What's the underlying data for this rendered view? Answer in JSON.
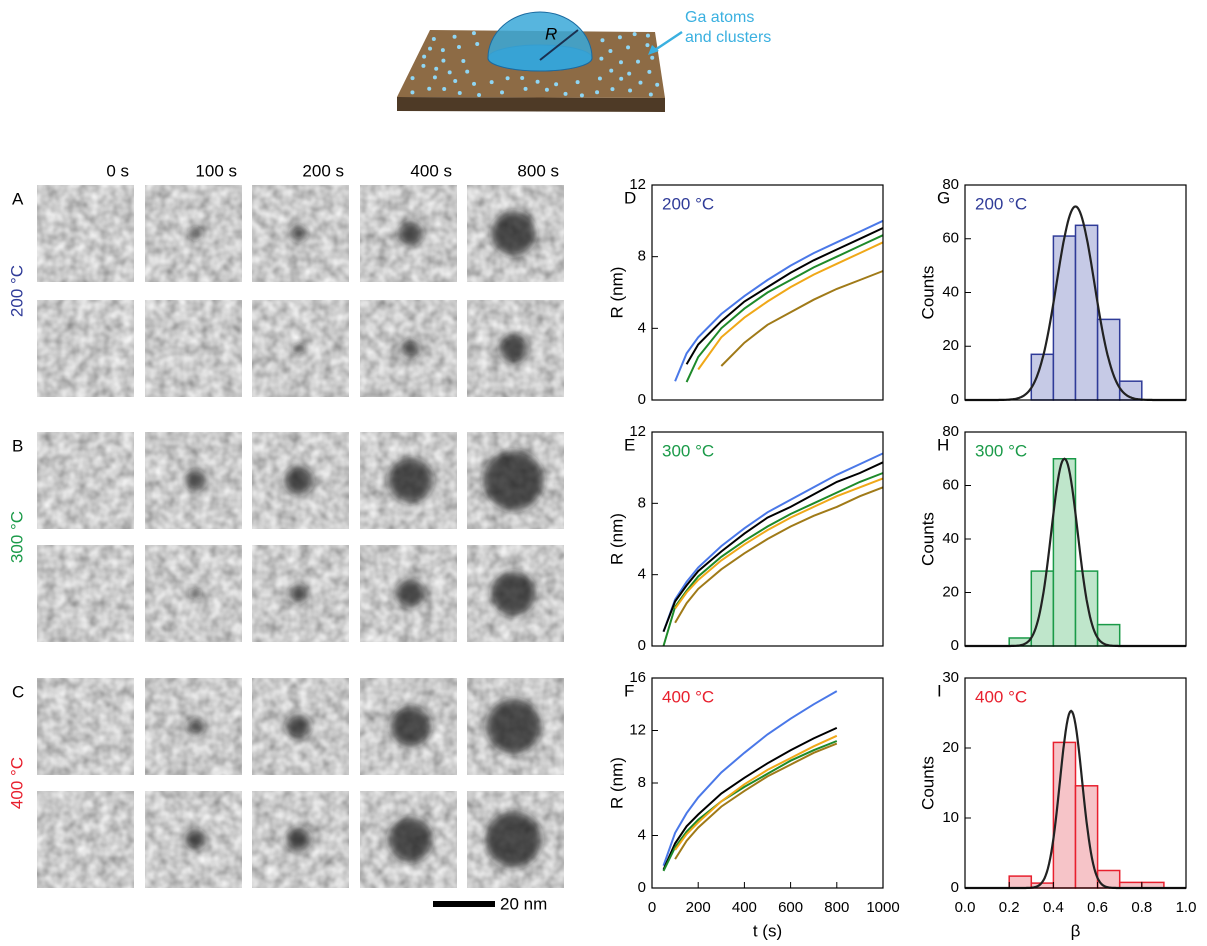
{
  "schematic": {
    "radius_label": "R",
    "atoms_label": [
      "Ga atoms",
      "and clusters"
    ]
  },
  "micrographs": {
    "times": [
      "0 s",
      "100 s",
      "200 s",
      "400 s",
      "800 s"
    ],
    "panels": [
      {
        "letter": "A",
        "temperature": "200 °C",
        "color": "#2f3b98"
      },
      {
        "letter": "B",
        "temperature": "300 °C",
        "color": "#1a9a48"
      },
      {
        "letter": "C",
        "temperature": "400 °C",
        "color": "#e8202e"
      }
    ],
    "scale_bar": "20 nm"
  },
  "chart_data": [
    {
      "type": "line",
      "panel": "D",
      "annotation": "200 °C",
      "annotation_color": "#2f3b98",
      "ylabel": "R (nm)",
      "x": [
        50,
        100,
        150,
        200,
        300,
        400,
        500,
        600,
        700,
        800,
        900,
        1000
      ],
      "series": [
        {
          "color": "#4a78e8",
          "values": [
            null,
            1.05,
            2.6,
            3.5,
            4.8,
            5.8,
            6.7,
            7.5,
            8.2,
            8.8,
            9.4,
            10
          ]
        },
        {
          "color": "#000000",
          "values": [
            null,
            null,
            2.0,
            3.1,
            4.4,
            5.5,
            6.3,
            7.1,
            7.8,
            8.4,
            9.0,
            9.6
          ]
        },
        {
          "color": "#1e8a2a",
          "values": [
            null,
            null,
            1.0,
            2.4,
            4.0,
            5.1,
            6.0,
            6.7,
            7.4,
            8.0,
            8.6,
            9.2
          ]
        },
        {
          "color": "#f0a818",
          "values": [
            null,
            null,
            null,
            1.7,
            3.5,
            4.6,
            5.5,
            6.3,
            7.0,
            7.6,
            8.2,
            8.8
          ]
        },
        {
          "color": "#a07a18",
          "values": [
            null,
            null,
            null,
            null,
            1.9,
            3.2,
            4.2,
            4.9,
            5.6,
            6.2,
            6.7,
            7.2
          ]
        }
      ],
      "xlim": [
        0,
        1000
      ],
      "ylim": [
        0,
        12
      ],
      "yticks": [
        0,
        4,
        8,
        12
      ]
    },
    {
      "type": "line",
      "panel": "E",
      "annotation": "300 °C",
      "annotation_color": "#1a9a48",
      "ylabel": "R (nm)",
      "x": [
        50,
        100,
        150,
        200,
        300,
        400,
        500,
        600,
        700,
        800,
        900,
        1000
      ],
      "series": [
        {
          "color": "#4a78e8",
          "values": [
            0.8,
            2.6,
            3.6,
            4.4,
            5.6,
            6.6,
            7.5,
            8.2,
            8.9,
            9.6,
            10.2,
            10.8
          ]
        },
        {
          "color": "#000000",
          "values": [
            0.8,
            2.5,
            3.4,
            4.2,
            5.3,
            6.3,
            7.2,
            7.8,
            8.5,
            9.2,
            9.7,
            10.3
          ]
        },
        {
          "color": "#1e8a2a",
          "values": [
            0,
            2.2,
            3.1,
            3.9,
            5.0,
            5.9,
            6.7,
            7.4,
            8.0,
            8.6,
            9.2,
            9.7
          ]
        },
        {
          "color": "#f0a818",
          "values": [
            null,
            2.1,
            3.0,
            3.7,
            4.8,
            5.7,
            6.5,
            7.2,
            7.8,
            8.4,
            8.9,
            9.4
          ]
        },
        {
          "color": "#a07a18",
          "values": [
            null,
            1.3,
            2.4,
            3.2,
            4.3,
            5.2,
            6.0,
            6.7,
            7.3,
            7.8,
            8.4,
            8.9
          ]
        }
      ],
      "xlim": [
        0,
        1000
      ],
      "ylim": [
        0,
        12
      ],
      "yticks": [
        0,
        4,
        8,
        12
      ]
    },
    {
      "type": "line",
      "panel": "F",
      "annotation": "400 °C",
      "annotation_color": "#e8202e",
      "ylabel": "R (nm)",
      "xlabel": "t (s)",
      "x": [
        50,
        100,
        150,
        200,
        300,
        400,
        500,
        600,
        700,
        800,
        900,
        1000
      ],
      "series": [
        {
          "color": "#4a78e8",
          "values": [
            1.7,
            4.2,
            5.7,
            6.9,
            8.8,
            10.3,
            11.7,
            12.9,
            14.0,
            15.0,
            null,
            null
          ]
        },
        {
          "color": "#000000",
          "values": [
            1.4,
            3.4,
            4.7,
            5.6,
            7.2,
            8.4,
            9.5,
            10.5,
            11.4,
            12.2,
            null,
            null
          ]
        },
        {
          "color": "#1e8a2a",
          "values": [
            1.3,
            3.1,
            4.3,
            5.2,
            6.6,
            7.7,
            8.7,
            9.7,
            10.5,
            11.2,
            null,
            null
          ]
        },
        {
          "color": "#f0a818",
          "values": [
            null,
            2.9,
            4.1,
            5.0,
            6.6,
            7.9,
            9.0,
            9.9,
            10.8,
            11.6,
            null,
            null
          ]
        },
        {
          "color": "#a07a18",
          "values": [
            null,
            2.2,
            3.6,
            4.6,
            6.2,
            7.4,
            8.5,
            9.4,
            10.3,
            11.0,
            null,
            null
          ]
        }
      ],
      "xlim": [
        0,
        1000
      ],
      "ylim": [
        0,
        16
      ],
      "yticks": [
        0,
        4,
        8,
        12,
        16
      ],
      "xticks": [
        0,
        200,
        400,
        600,
        800,
        1000
      ]
    },
    {
      "type": "histogram",
      "panel": "G",
      "annotation": "200 °C",
      "annotation_color": "#2f3b98",
      "ylabel": "Counts",
      "bins": [
        0.3,
        0.4,
        0.5,
        0.6,
        0.7,
        0.8
      ],
      "values": [
        17,
        61,
        65,
        30,
        7
      ],
      "color": "#2f3b98",
      "fill": "#c6cae6",
      "fit": {
        "center": 0.5,
        "width": 0.085,
        "peak": 72
      },
      "xlim": [
        0,
        1
      ],
      "ylim": [
        0,
        80
      ],
      "yticks": [
        0,
        20,
        40,
        60,
        80
      ]
    },
    {
      "type": "histogram",
      "panel": "H",
      "annotation": "300 °C",
      "annotation_color": "#1a9a48",
      "ylabel": "Counts",
      "bins": [
        0.2,
        0.3,
        0.4,
        0.5,
        0.6,
        0.7
      ],
      "values": [
        3,
        28,
        70,
        28,
        8
      ],
      "color": "#1a9a48",
      "fill": "#bfe6cb",
      "fit": {
        "center": 0.45,
        "width": 0.06,
        "peak": 70
      },
      "xlim": [
        0,
        1
      ],
      "ylim": [
        0,
        80
      ],
      "yticks": [
        0,
        20,
        40,
        60,
        80
      ]
    },
    {
      "type": "histogram",
      "panel": "I",
      "annotation": "400 °C",
      "annotation_color": "#e8202e",
      "ylabel": "Counts",
      "xlabel": "β",
      "bins": [
        0.2,
        0.3,
        0.4,
        0.5,
        0.6,
        0.7,
        0.8,
        0.9
      ],
      "values": [
        1.7,
        0.7,
        20.8,
        14.6,
        2.5,
        0.8,
        0.8
      ],
      "color": "#e8202e",
      "fill": "#f6c4c8",
      "fit": {
        "center": 0.48,
        "width": 0.05,
        "peak": 25.3
      },
      "xlim": [
        0,
        1
      ],
      "ylim": [
        0,
        30
      ],
      "yticks": [
        0,
        10,
        20,
        30
      ],
      "xticks": [
        {
          "value": 0,
          "label": "0.0"
        },
        0.2,
        0.4,
        0.6,
        0.8,
        {
          "value": 1,
          "label": "1.0"
        }
      ]
    }
  ]
}
